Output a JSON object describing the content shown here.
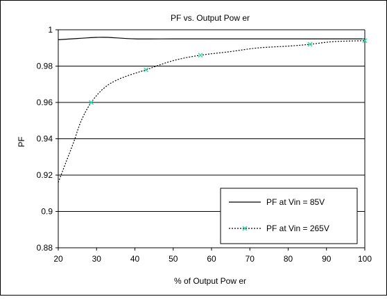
{
  "chart_data": {
    "type": "line",
    "title": "PF vs. Output Pow er",
    "xlabel": "% of Output Pow er",
    "ylabel": "PF",
    "xlim": [
      20,
      100
    ],
    "ylim": [
      0.88,
      1.0
    ],
    "x_ticks": [
      "20",
      "30",
      "40",
      "50",
      "60",
      "70",
      "80",
      "90",
      "100"
    ],
    "y_ticks": [
      "0.88",
      "0.9",
      "0.92",
      "0.94",
      "0.96",
      "0.98",
      "1"
    ],
    "grid": "horizontal",
    "legend_position": "bottom-right",
    "series": [
      {
        "name": "PF at Vin = 85V",
        "style": "solid",
        "color": "#000000",
        "marker": "none",
        "x": [
          20,
          25,
          30,
          33,
          40,
          50,
          60,
          70,
          80,
          90,
          100
        ],
        "y": [
          0.9945,
          0.9952,
          0.9958,
          0.9958,
          0.995,
          0.995,
          0.995,
          0.995,
          0.995,
          0.995,
          0.995
        ]
      },
      {
        "name": "PF at Vin = 265V",
        "style": "dotted",
        "color": "#000000",
        "marker": "x",
        "marker_color": "#39d9b0",
        "x": [
          20,
          22,
          24,
          26,
          28.6,
          32,
          36,
          42.9,
          50,
          57.1,
          65,
          72,
          80,
          85.7,
          92,
          100
        ],
        "y": [
          0.916,
          0.927,
          0.938,
          0.95,
          0.96,
          0.968,
          0.973,
          0.978,
          0.983,
          0.986,
          0.988,
          0.99,
          0.991,
          0.992,
          0.9935,
          0.994
        ],
        "markers_x": [
          28.6,
          42.9,
          57.1,
          85.7,
          100
        ],
        "markers_y": [
          0.96,
          0.978,
          0.986,
          0.992,
          0.994
        ]
      }
    ]
  }
}
